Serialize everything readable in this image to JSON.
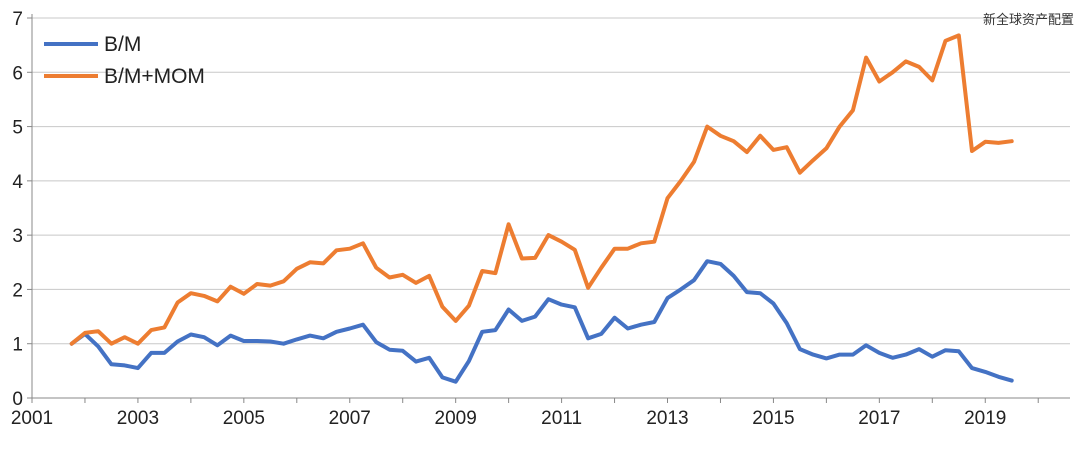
{
  "watermark": "新全球资产配置",
  "colors": {
    "bm": "#4472c4",
    "bm_mom": "#ed7d31",
    "grid": "#c8c8c8",
    "axis": "#888888"
  },
  "chart_data": {
    "type": "line",
    "title": "",
    "xlabel": "",
    "ylabel": "",
    "xlim": [
      2001,
      2020.6
    ],
    "ylim": [
      0,
      7
    ],
    "x_ticks": [
      "2001",
      "2003",
      "2005",
      "2007",
      "2009",
      "2011",
      "2013",
      "2015",
      "2017",
      "2019"
    ],
    "y_ticks": [
      "0",
      "1",
      "2",
      "3",
      "4",
      "5",
      "6",
      "7"
    ],
    "grid": "horizontal",
    "legend_position": "top-left",
    "x": [
      2001.75,
      2002.0,
      2002.25,
      2002.5,
      2002.75,
      2003.0,
      2003.25,
      2003.5,
      2003.75,
      2004.0,
      2004.25,
      2004.5,
      2004.75,
      2005.0,
      2005.25,
      2005.5,
      2005.75,
      2006.0,
      2006.25,
      2006.5,
      2006.75,
      2007.0,
      2007.25,
      2007.5,
      2007.75,
      2008.0,
      2008.25,
      2008.5,
      2008.75,
      2009.0,
      2009.25,
      2009.5,
      2009.75,
      2010.0,
      2010.25,
      2010.5,
      2010.75,
      2011.0,
      2011.25,
      2011.5,
      2011.75,
      2012.0,
      2012.25,
      2012.5,
      2012.75,
      2013.0,
      2013.25,
      2013.5,
      2013.75,
      2014.0,
      2014.25,
      2014.5,
      2014.75,
      2015.0,
      2015.25,
      2015.5,
      2015.75,
      2016.0,
      2016.25,
      2016.5,
      2016.75,
      2017.0,
      2017.25,
      2017.5,
      2017.75,
      2018.0,
      2018.25,
      2018.5,
      2018.75,
      2019.0,
      2019.25,
      2019.5
    ],
    "series": [
      {
        "name": "B/M",
        "color": "#4472c4",
        "values": [
          1.0,
          1.18,
          0.95,
          0.62,
          0.6,
          0.55,
          0.83,
          0.83,
          1.04,
          1.17,
          1.12,
          0.97,
          1.15,
          1.05,
          1.05,
          1.04,
          1.0,
          1.08,
          1.15,
          1.1,
          1.22,
          1.28,
          1.35,
          1.03,
          0.89,
          0.87,
          0.67,
          0.74,
          0.38,
          0.3,
          0.68,
          1.22,
          1.25,
          1.63,
          1.42,
          1.5,
          1.82,
          1.72,
          1.67,
          1.1,
          1.18,
          1.48,
          1.28,
          1.35,
          1.4,
          1.84,
          2.0,
          2.17,
          2.52,
          2.47,
          2.25,
          1.95,
          1.93,
          1.74,
          1.38,
          0.9,
          0.8,
          0.73,
          0.8,
          0.8,
          0.97,
          0.83,
          0.74,
          0.8,
          0.9,
          0.76,
          0.88,
          0.86,
          0.55,
          0.48,
          0.39,
          0.32
        ]
      },
      {
        "name": "B/M+MOM",
        "color": "#ed7d31",
        "values": [
          1.0,
          1.2,
          1.23,
          1.0,
          1.12,
          1.0,
          1.25,
          1.3,
          1.76,
          1.93,
          1.88,
          1.78,
          2.05,
          1.92,
          2.1,
          2.07,
          2.15,
          2.38,
          2.5,
          2.48,
          2.72,
          2.75,
          2.85,
          2.4,
          2.22,
          2.27,
          2.12,
          2.25,
          1.68,
          1.42,
          1.7,
          2.34,
          2.3,
          3.2,
          2.57,
          2.58,
          3.0,
          2.88,
          2.73,
          2.03,
          2.4,
          2.75,
          2.75,
          2.85,
          2.88,
          3.68,
          4.0,
          4.35,
          5.0,
          4.83,
          4.73,
          4.53,
          4.83,
          4.57,
          4.62,
          4.15,
          4.38,
          4.6,
          5.0,
          5.3,
          6.27,
          5.83,
          6.0,
          6.2,
          6.1,
          5.85,
          6.58,
          6.68,
          4.55,
          4.72,
          4.7,
          4.73
        ]
      }
    ]
  }
}
